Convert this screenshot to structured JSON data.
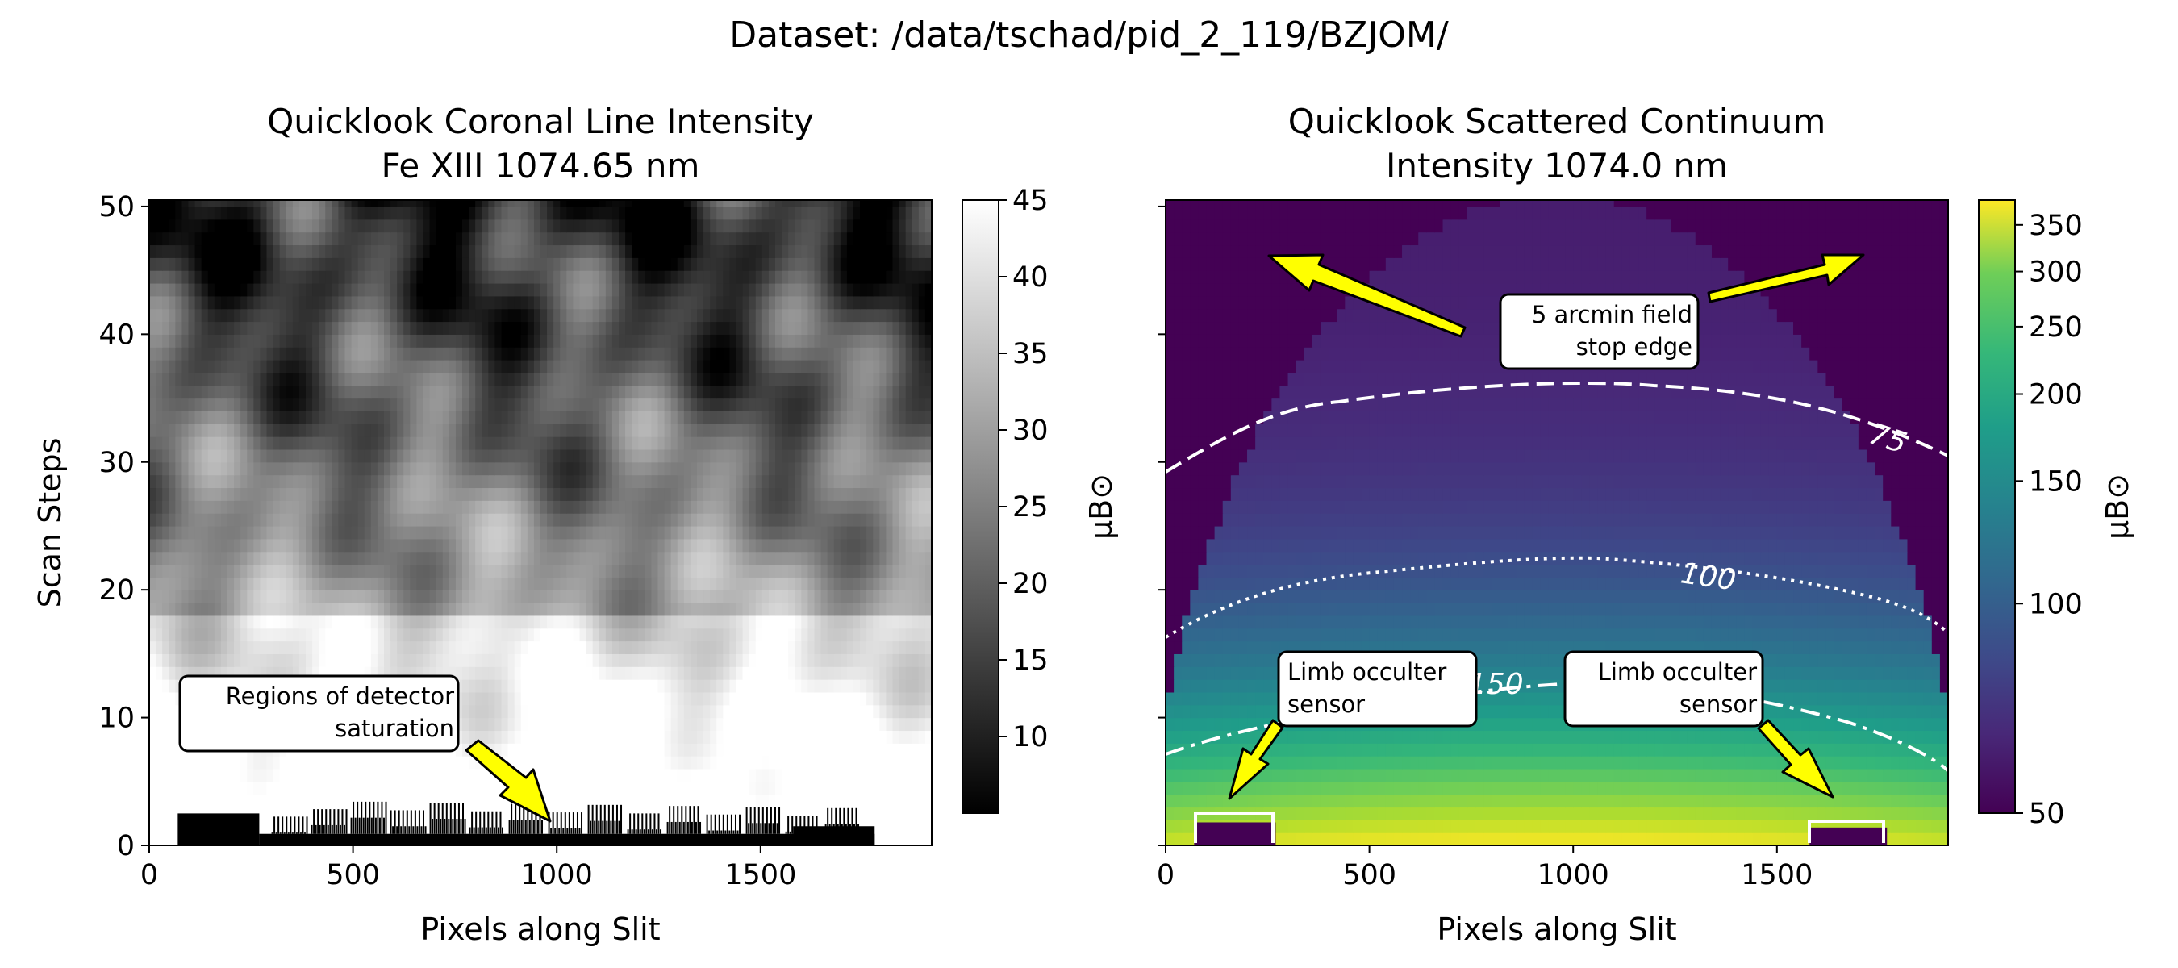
{
  "figure": {
    "suptitle": "Dataset: /data/tschad/pid_2_119/BZJOM/"
  },
  "chart_data": [
    {
      "type": "heatmap",
      "title_line1": "Quicklook Coronal Line Intensity",
      "title_line2": "Fe XIII 1074.65 nm",
      "xlabel": "Pixels along Slit",
      "ylabel": "Scan Steps",
      "xlim": [
        0,
        1920
      ],
      "ylim": [
        0,
        50.5
      ],
      "xticks": [
        0,
        500,
        1000,
        1500
      ],
      "yticks": [
        0,
        10,
        20,
        30,
        40,
        50
      ],
      "colormap": "gray",
      "colorbar": {
        "label": "μB⊙",
        "range": [
          5,
          45
        ],
        "ticks": [
          10,
          15,
          20,
          25,
          30,
          35,
          40,
          45
        ]
      },
      "annotations": [
        {
          "text_line1": "Regions of detector",
          "text_line2": "saturation",
          "target_x": 1000,
          "target_y": 1
        }
      ]
    },
    {
      "type": "heatmap",
      "title_line1": "Quicklook Scattered Continuum",
      "title_line2": "Intensity 1074.0 nm",
      "xlabel": "Pixels along Slit",
      "xlim": [
        0,
        1920
      ],
      "ylim": [
        0,
        50.5
      ],
      "xticks": [
        0,
        500,
        1000,
        1500
      ],
      "yticks": [
        0,
        10,
        20,
        30,
        40,
        50
      ],
      "colormap": "viridis",
      "scale": "log",
      "colorbar": {
        "label": "μB⊙",
        "range": [
          50,
          380
        ],
        "ticks": [
          50,
          100,
          150,
          200,
          250,
          300,
          350
        ]
      },
      "contours": [
        {
          "level": 75,
          "label": "75",
          "style": "dashed"
        },
        {
          "level": 100,
          "label": "100",
          "style": "dotted"
        },
        {
          "level": 150,
          "label": "150",
          "style": "dashdot"
        }
      ],
      "annotations": [
        {
          "text_line1": "5 arcmin field",
          "text_line2": "stop edge"
        },
        {
          "text_line1": "Limb occulter",
          "text_line2": "sensor"
        },
        {
          "text_line1": "Limb occulter",
          "text_line2": "sensor"
        }
      ]
    }
  ],
  "colors": {
    "annotation_arrow": "#ffff00",
    "contour": "#ffffff",
    "viridis_low": "#440154",
    "viridis_high": "#fde725"
  }
}
